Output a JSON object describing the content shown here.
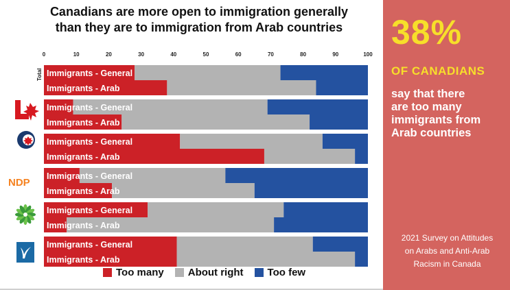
{
  "title_lines": [
    "Canadians are more open to immigration generally",
    "than they are to immigration from Arab countries"
  ],
  "colors": {
    "too_many": "#cc2127",
    "about_right": "#b3b3b3",
    "too_few": "#2452a0",
    "panel": "#d4645f",
    "highlight": "#f7df2a"
  },
  "panel": {
    "big_number": "38%",
    "subheading": "OF CANADIANS",
    "statement_lines": [
      "say that there",
      "are too many",
      "immigrants from",
      "Arab countries"
    ],
    "source_lines": [
      "2021 Survey on Attitudes",
      "on Arabs and Anti-Arab",
      "Racism in Canada"
    ]
  },
  "chart_data": {
    "type": "bar",
    "orientation": "horizontal",
    "stacked": true,
    "title": "Canadians are more open to immigration generally than they are to immigration from Arab countries",
    "xlim": [
      0,
      100
    ],
    "xticks": [
      0,
      10,
      20,
      30,
      40,
      50,
      60,
      70,
      80,
      90,
      100
    ],
    "legend_position": "bottom",
    "series_names": [
      "Too many",
      "About right",
      "Too few"
    ],
    "groups": [
      {
        "label": "Total",
        "icon": "total-label",
        "bars": [
          {
            "label": "Immigrants - General",
            "too_many": 28,
            "about_right": 45,
            "too_few": 27
          },
          {
            "label": "Immigrants - Arab",
            "too_many": 38,
            "about_right": 46,
            "too_few": 16
          }
        ]
      },
      {
        "label": "",
        "icon": "liberal-logo-icon",
        "bars": [
          {
            "label": "Immigrants - General",
            "too_many": 9,
            "about_right": 60,
            "too_few": 31
          },
          {
            "label": "Immigrants - Arab",
            "too_many": 24,
            "about_right": 58,
            "too_few": 18
          }
        ]
      },
      {
        "label": "",
        "icon": "conservative-logo-icon",
        "bars": [
          {
            "label": "Immigrants - General",
            "too_many": 42,
            "about_right": 44,
            "too_few": 14
          },
          {
            "label": "Immigrants - Arab",
            "too_many": 68,
            "about_right": 28,
            "too_few": 4
          }
        ]
      },
      {
        "label": "NDP",
        "icon": "ndp-logo",
        "bars": [
          {
            "label": "Immigrants - General",
            "too_many": 11,
            "about_right": 45,
            "too_few": 44
          },
          {
            "label": "Immigrants - Arab",
            "too_many": 21,
            "about_right": 44,
            "too_few": 35
          }
        ]
      },
      {
        "label": "",
        "icon": "green-party-logo-icon",
        "bars": [
          {
            "label": "Immigrants - General",
            "too_many": 32,
            "about_right": 42,
            "too_few": 26
          },
          {
            "label": "Immigrants - Arab",
            "too_many": 7,
            "about_right": 64,
            "too_few": 29
          }
        ]
      },
      {
        "label": "",
        "icon": "bloc-logo-icon",
        "bars": [
          {
            "label": "Immigrants - General",
            "too_many": 41,
            "about_right": 42,
            "too_few": 17
          },
          {
            "label": "Immigrants - Arab",
            "too_many": 41,
            "about_right": 55,
            "too_few": 4
          }
        ]
      }
    ]
  }
}
